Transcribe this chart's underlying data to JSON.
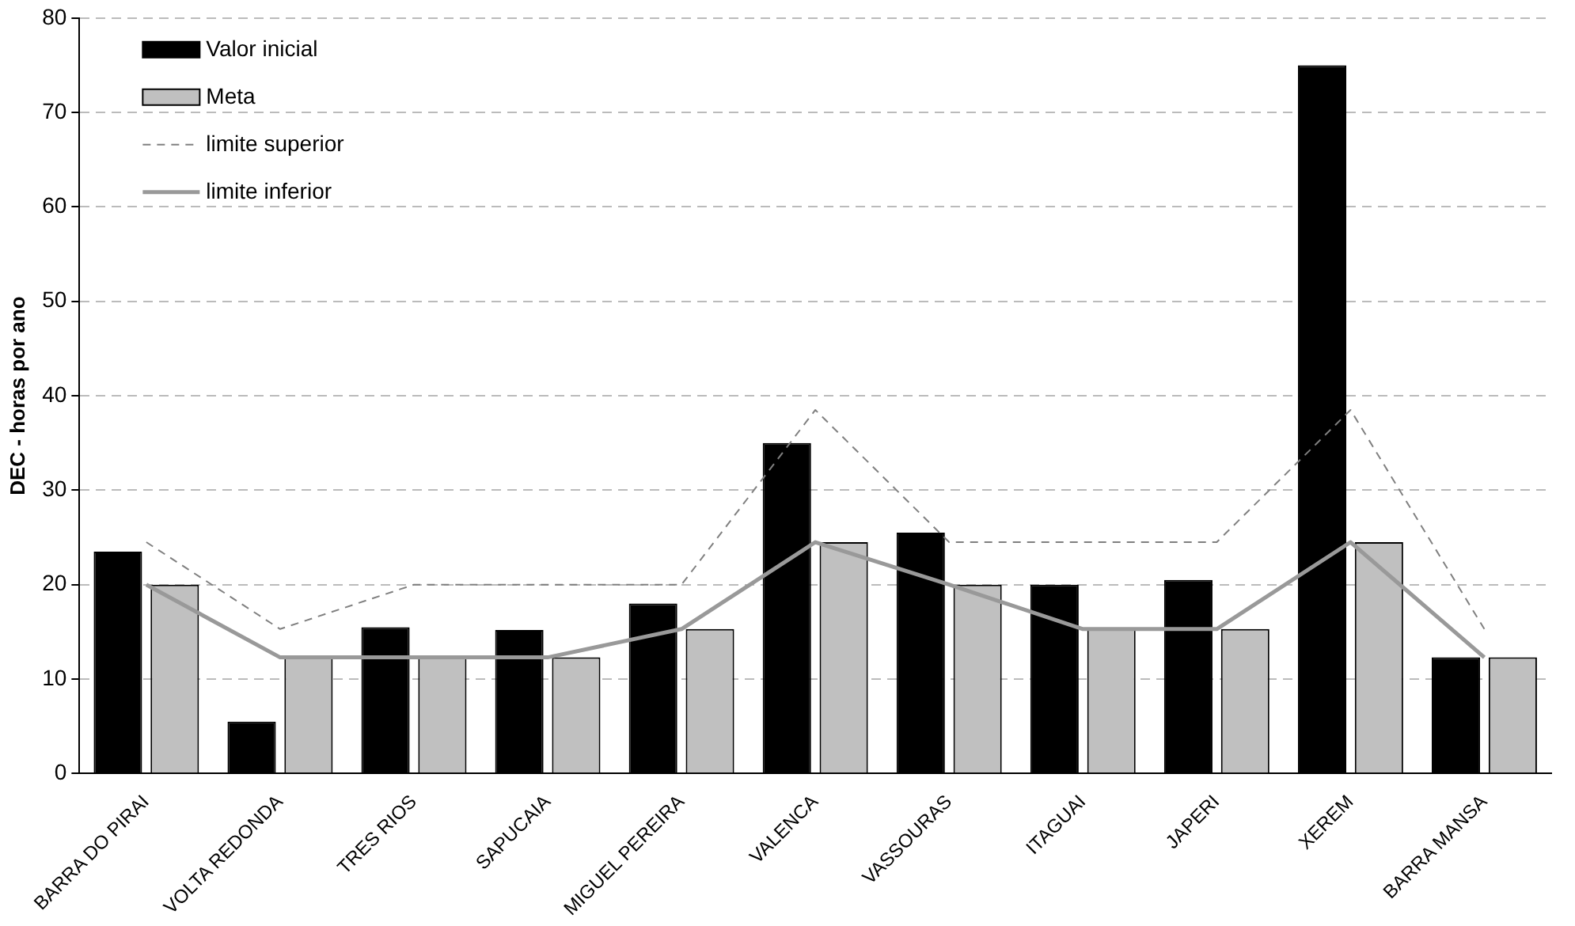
{
  "chart_data": {
    "type": "bar",
    "ylabel": "DEC - horas por ano",
    "categories": [
      "BARRA DO PIRAI",
      "VOLTA REDONDA",
      "TRES RIOS",
      "SAPUCAIA",
      "MIGUEL PEREIRA",
      "VALENCA",
      "VASSOURAS",
      "ITAGUAI",
      "JAPERI",
      "XEREM",
      "BARRA MANSA"
    ],
    "series": [
      {
        "name": "Valor inicial",
        "color": "#000000",
        "values": [
          23.5,
          5.5,
          15.5,
          15.2,
          18,
          35,
          25.5,
          20,
          20.5,
          75,
          12.3
        ]
      },
      {
        "name": "Meta",
        "color": "#c0c0c0",
        "values": [
          20,
          12.3,
          12.3,
          12.3,
          15.3,
          24.5,
          20,
          15.3,
          15.3,
          24.5,
          12.3
        ]
      },
      {
        "name": "limite superior",
        "type": "line",
        "color": "#808080",
        "line_style": "dashed",
        "values": [
          24.5,
          15.3,
          20,
          20,
          20,
          38.5,
          24.5,
          24.5,
          24.5,
          38.5,
          15.3
        ]
      },
      {
        "name": "limite inferior",
        "type": "line",
        "color": "#999999",
        "line_style": "solid",
        "values": [
          20,
          12.3,
          12.3,
          12.3,
          15.3,
          24.5,
          20,
          15.3,
          15.3,
          24.5,
          12.3
        ]
      }
    ],
    "ylim": [
      0,
      80
    ],
    "yticks": [
      0,
      10,
      20,
      30,
      40,
      50,
      60,
      70,
      80
    ],
    "grid": "y",
    "legend": "top left",
    "marker": "none"
  }
}
